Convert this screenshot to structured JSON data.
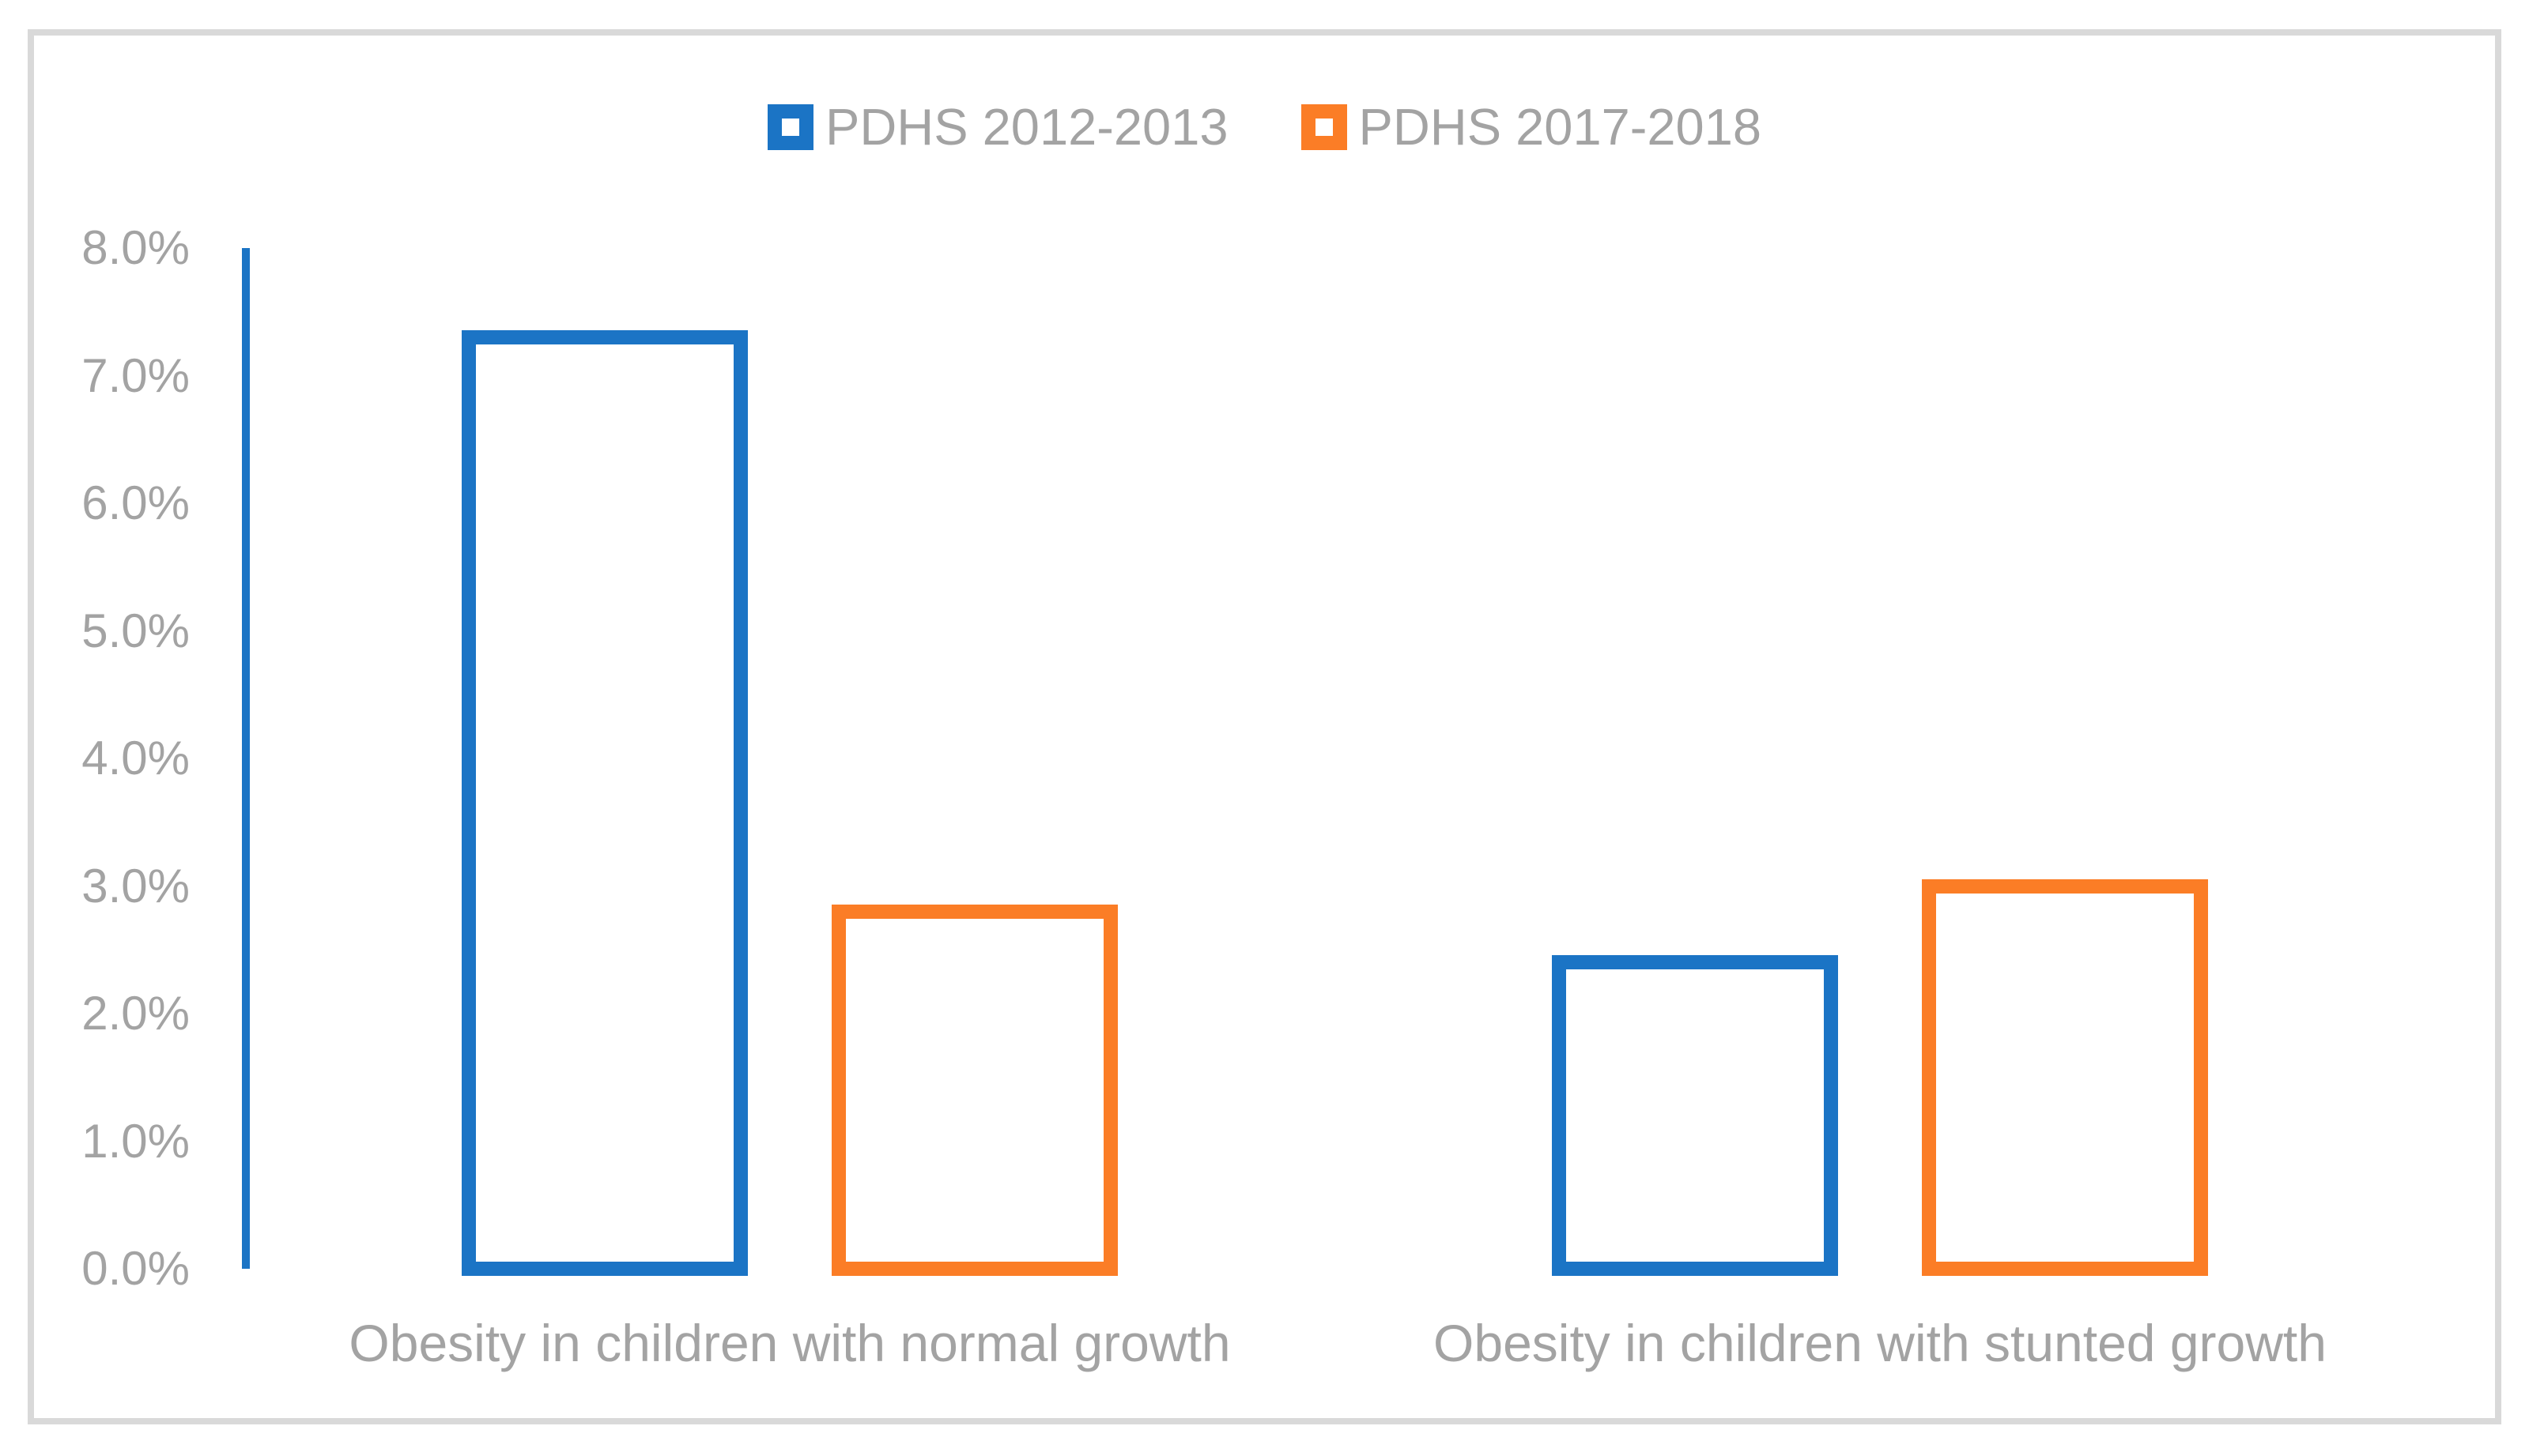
{
  "figure": {
    "background_color": "#FFFFFF",
    "frame_border_color": "#D9D9D9",
    "text_color": "#A3A3A3"
  },
  "chart_data": {
    "type": "bar",
    "title": "",
    "xlabel": "",
    "ylabel": "",
    "categories": [
      "Obesity in children with normal growth",
      "Obesity in children with stunted growth"
    ],
    "series": [
      {
        "name": "PDHS 2012-2013",
        "color": "#1B74C5",
        "values": [
          7.3,
          2.4
        ]
      },
      {
        "name": "PDHS 2017-2018",
        "color": "#FB7D26",
        "values": [
          2.8,
          3.0
        ]
      }
    ],
    "values_unit": "%",
    "ylim": [
      0,
      8
    ],
    "yticks": [
      "0.0%",
      "1.0%",
      "2.0%",
      "3.0%",
      "4.0%",
      "5.0%",
      "6.0%",
      "7.0%",
      "8.0%"
    ],
    "grid": false,
    "bar_style": "outlined-hollow",
    "legend_position": "top-center",
    "axis_line_color": "#1B74C5"
  }
}
